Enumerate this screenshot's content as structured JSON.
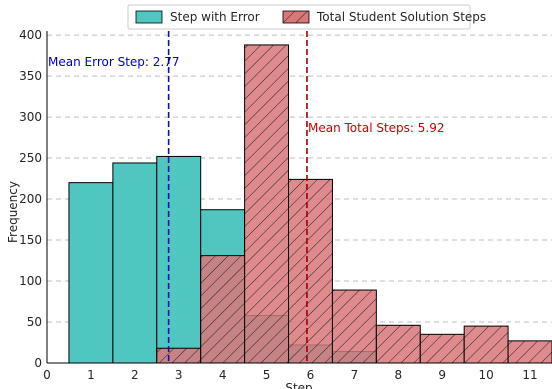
{
  "chart_data": {
    "type": "histogram",
    "xlabel": "Step",
    "ylabel": "Frequency",
    "xlim": [
      0,
      11.5
    ],
    "ylim": [
      0,
      405
    ],
    "x_ticks": [
      0,
      1,
      2,
      3,
      4,
      5,
      6,
      7,
      8,
      9,
      10,
      11
    ],
    "y_ticks": [
      0,
      50,
      100,
      150,
      200,
      250,
      300,
      350,
      400
    ],
    "grid": "y-dashed",
    "legend_position": "top-center",
    "series": [
      {
        "name": "Step with Error",
        "color": "#4fc6bf",
        "hatch": false,
        "bins": [
          {
            "x": 1,
            "value": 220
          },
          {
            "x": 2,
            "value": 244
          },
          {
            "x": 3,
            "value": 252
          },
          {
            "x": 4,
            "value": 187
          },
          {
            "x": 5,
            "value": 58
          },
          {
            "x": 6,
            "value": 22
          },
          {
            "x": 7,
            "value": 14
          }
        ]
      },
      {
        "name": "Total Student Solution Steps",
        "color": "#d9777a",
        "hatch": true,
        "bins": [
          {
            "x": 3,
            "value": 18
          },
          {
            "x": 4,
            "value": 131
          },
          {
            "x": 5,
            "value": 388
          },
          {
            "x": 6,
            "value": 224
          },
          {
            "x": 7,
            "value": 89
          },
          {
            "x": 8,
            "value": 46
          },
          {
            "x": 9,
            "value": 35
          },
          {
            "x": 10,
            "value": 45
          },
          {
            "x": 11,
            "value": 27
          }
        ]
      }
    ],
    "annotations": [
      {
        "label": "Mean Error Step: 2.77",
        "x": 2.77,
        "color": "#0000cc"
      },
      {
        "label": "Mean Total Steps: 5.92",
        "x": 5.92,
        "color": "#cc0000"
      }
    ]
  }
}
